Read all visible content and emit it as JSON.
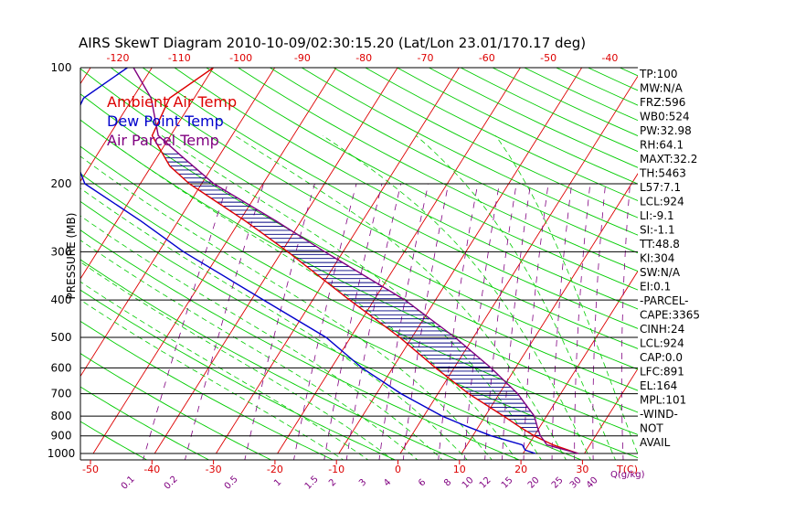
{
  "chart_data": {
    "type": "skewt",
    "title": "AIRS SkewT Diagram 2010-10-09/02:30:15.20 (Lat/Lon 23.01/170.17 deg)",
    "ylabel": "PRESSURE (MB)",
    "xlabel": "T(C)",
    "mixing_unit": "Q(g/kg)",
    "pressure_levels": [
      100,
      200,
      300,
      400,
      500,
      600,
      700,
      800,
      900,
      1000
    ],
    "bottom_temp_ticks": [
      "-50",
      "-40",
      "-30",
      "-20",
      "-10",
      "0",
      "10",
      "20",
      "30"
    ],
    "top_temp_ticks": [
      "-120",
      "-110",
      "-100",
      "-90",
      "-80",
      "-70",
      "-60",
      "-50",
      "-40"
    ],
    "mixing_ratio_labels": [
      "0.1",
      "0.2",
      "0.5",
      "1",
      "1.5",
      "2",
      "3",
      "4",
      "6",
      "8",
      "10",
      "12",
      "15",
      "20",
      "25",
      "30",
      "40"
    ],
    "legend": [
      {
        "label": "Ambient Air Temp",
        "color": "#dd0000"
      },
      {
        "label": "Dew Point Temp",
        "color": "#0000cc"
      },
      {
        "label": "Air Parcel Temp",
        "color": "#800080"
      }
    ],
    "series": [
      {
        "name": "Ambient Air Temp",
        "color": "#dd0000",
        "points": [
          [
            1000,
            29
          ],
          [
            950,
            24
          ],
          [
            900,
            20
          ],
          [
            850,
            16.5
          ],
          [
            800,
            13
          ],
          [
            700,
            5
          ],
          [
            600,
            -3
          ],
          [
            500,
            -12
          ],
          [
            400,
            -24
          ],
          [
            300,
            -39
          ],
          [
            250,
            -49
          ],
          [
            200,
            -62
          ],
          [
            180,
            -67
          ],
          [
            150,
            -73
          ],
          [
            120,
            -74
          ],
          [
            100,
            -70
          ]
        ]
      },
      {
        "name": "Dew Point Temp",
        "color": "#0000cc",
        "points": [
          [
            1000,
            22
          ],
          [
            980,
            20
          ],
          [
            950,
            19
          ],
          [
            900,
            13
          ],
          [
            850,
            8
          ],
          [
            800,
            3
          ],
          [
            700,
            -6
          ],
          [
            600,
            -15
          ],
          [
            500,
            -24
          ],
          [
            400,
            -38
          ],
          [
            300,
            -56
          ],
          [
            250,
            -66
          ],
          [
            200,
            -79
          ],
          [
            150,
            -87
          ],
          [
            120,
            -88
          ],
          [
            100,
            -84
          ]
        ]
      },
      {
        "name": "Air Parcel Temp",
        "color": "#800080",
        "points": [
          [
            1000,
            29
          ],
          [
            950,
            23
          ],
          [
            924,
            22
          ],
          [
            900,
            21
          ],
          [
            850,
            19.5
          ],
          [
            800,
            18
          ],
          [
            700,
            13
          ],
          [
            600,
            6
          ],
          [
            500,
            -3
          ],
          [
            400,
            -15
          ],
          [
            300,
            -33
          ],
          [
            250,
            -44
          ],
          [
            200,
            -58
          ],
          [
            170,
            -66
          ],
          [
            150,
            -72
          ],
          [
            120,
            -77
          ],
          [
            100,
            -83
          ]
        ]
      }
    ],
    "parameters": [
      "TP:100",
      "MW:N/A",
      "FRZ:596",
      "WB0:524",
      "PW:32.98",
      "RH:64.1",
      "MAXT:32.2",
      "TH:5463",
      "L57:7.1",
      "LCL:924",
      "LI:-9.1",
      "SI:-1.1",
      "TT:48.8",
      "KI:304",
      "SW:N/A",
      "EI:0.1",
      "-PARCEL-",
      "CAPE:3365",
      "CINH:24",
      "LCL:924",
      "CAP:0.0",
      "LFC:891",
      "EL:164",
      "MPL:101",
      "-WIND-",
      "NOT",
      "AVAIL"
    ]
  },
  "colors": {
    "isotherm": "#dd0000",
    "dry_adiabat": "#00cc00",
    "moist_adiabat": "#00cc00",
    "mixing_ratio": "#800080",
    "isobar": "#000000",
    "hatch": "#000080"
  }
}
